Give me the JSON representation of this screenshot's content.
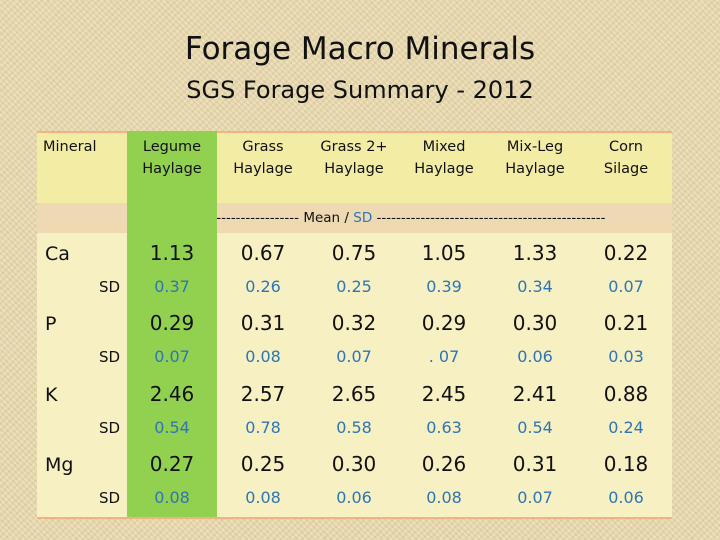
{
  "title": "Forage Macro Minerals",
  "subtitle": "SGS Forage Summary - 2012",
  "table": {
    "mineral_header": "Mineral",
    "columns": [
      {
        "line1": "Legume",
        "line2": "Haylage"
      },
      {
        "line1": "Grass",
        "line2": "Haylage"
      },
      {
        "line1": "Grass 2+",
        "line2": "Haylage"
      },
      {
        "line1": "Mixed",
        "line2": "Haylage"
      },
      {
        "line1": "Mix-Leg",
        "line2": "Haylage"
      },
      {
        "line1": "Corn",
        "line2": "Silage"
      }
    ],
    "mean_sd_row": {
      "left_dashes": "------------------------------- ",
      "mean": "Mean",
      "sep": " / ",
      "sd": "SD",
      "right_dashes": " -----------------------------------------------"
    },
    "sd_label": "SD",
    "rows": [
      {
        "mineral": "Ca",
        "mean": [
          "1.13",
          "0.67",
          "0.75",
          "1.05",
          "1.33",
          "0.22"
        ],
        "sd": [
          "0.37",
          "0.26",
          "0.25",
          "0.39",
          "0.34",
          "0.07"
        ]
      },
      {
        "mineral": "P",
        "mean": [
          "0.29",
          "0.31",
          "0.32",
          "0.29",
          "0.30",
          "0.21"
        ],
        "sd": [
          "0.07",
          "0.08",
          "0.07",
          ". 07",
          "0.06",
          "0.03"
        ]
      },
      {
        "mineral": "K",
        "mean": [
          "2.46",
          "2.57",
          "2.65",
          "2.45",
          "2.41",
          "0.88"
        ],
        "sd": [
          "0.54",
          "0.78",
          "0.58",
          "0.63",
          "0.54",
          "0.24"
        ]
      },
      {
        "mineral": "Mg",
        "mean": [
          "0.27",
          "0.25",
          "0.30",
          "0.26",
          "0.31",
          "0.18"
        ],
        "sd": [
          "0.08",
          "0.08",
          "0.06",
          "0.08",
          "0.07",
          "0.06"
        ]
      }
    ]
  },
  "colors": {
    "legume_column": "#92d050",
    "sd_value": "#2e75b6",
    "header_band": "#f3eca4",
    "border_accent": "#f4b183"
  }
}
